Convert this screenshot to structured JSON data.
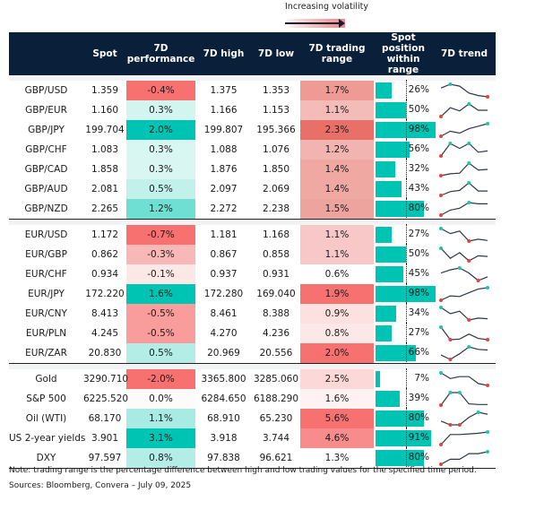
{
  "legend": {
    "label": "Increasing volatility"
  },
  "headers": {
    "name": "",
    "spot": "Spot",
    "perf": "7D performance",
    "high": "7D high",
    "low": "7D low",
    "range": "7D trading range",
    "position": "Spot position within range",
    "trend": "7D trend"
  },
  "colors": {
    "header_bg": "#0a1f3a",
    "bar": "#00c4b3",
    "trend_line": "#2d3748",
    "trend_high_dot": "#1fc4b0",
    "trend_low_dot": "#e0443c",
    "spacer": "#f1f3f5"
  },
  "groups": [
    {
      "rows": [
        {
          "name": "GBP/USD",
          "spot": "1.359",
          "perf": "-0.4%",
          "perf_bg": "#f87171",
          "high": "1.375",
          "low": "1.353",
          "range": "1.7%",
          "range_bg": "#ef9a94",
          "position": 26,
          "position_label": "26%",
          "trend": [
            0.7,
            1.0,
            0.85,
            0.3,
            0.1,
            0.0
          ]
        },
        {
          "name": "GBP/EUR",
          "spot": "1.160",
          "perf": "0.3%",
          "perf_bg": "#d2f5f0",
          "high": "1.166",
          "low": "1.153",
          "range": "1.1%",
          "range_bg": "#f4bcb8",
          "position": 50,
          "position_label": "50%",
          "trend": [
            0.0,
            0.7,
            0.45,
            1.0,
            0.5,
            0.5
          ]
        },
        {
          "name": "GBP/JPY",
          "spot": "199.704",
          "perf": "2.0%",
          "perf_bg": "#00c4b3",
          "high": "199.807",
          "low": "195.366",
          "range": "2.3%",
          "range_bg": "#e87068",
          "position": 98,
          "position_label": "98%",
          "trend": [
            0.0,
            0.4,
            0.25,
            0.6,
            0.8,
            1.0
          ]
        },
        {
          "name": "GBP/CHF",
          "spot": "1.083",
          "perf": "0.3%",
          "perf_bg": "#d8f6f2",
          "high": "1.088",
          "low": "1.076",
          "range": "1.2%",
          "range_bg": "#f2b4b0",
          "position": 56,
          "position_label": "56%",
          "trend": [
            0.0,
            1.0,
            0.6,
            1.0,
            0.3,
            0.4
          ]
        },
        {
          "name": "GBP/CAD",
          "spot": "1.858",
          "perf": "0.3%",
          "perf_bg": "#daf6f2",
          "high": "1.876",
          "low": "1.850",
          "range": "1.4%",
          "range_bg": "#efa8a2",
          "position": 32,
          "position_label": "32%",
          "trend": [
            0.0,
            0.15,
            0.2,
            1.0,
            0.45,
            0.5
          ]
        },
        {
          "name": "GBP/AUD",
          "spot": "2.081",
          "perf": "0.5%",
          "perf_bg": "#c2f1eb",
          "high": "2.097",
          "low": "2.069",
          "range": "1.4%",
          "range_bg": "#efa8a2",
          "position": 43,
          "position_label": "43%",
          "trend": [
            0.0,
            0.3,
            0.4,
            1.0,
            0.35,
            0.35
          ]
        },
        {
          "name": "GBP/NZD",
          "spot": "2.265",
          "perf": "1.2%",
          "perf_bg": "#6fdfd4",
          "high": "2.272",
          "low": "2.238",
          "range": "1.5%",
          "range_bg": "#eea49e",
          "position": 80,
          "position_label": "80%",
          "trend": [
            0.0,
            0.4,
            0.55,
            1.0,
            0.9,
            0.9
          ]
        }
      ]
    },
    {
      "rows": [
        {
          "name": "EUR/USD",
          "spot": "1.172",
          "perf": "-0.7%",
          "perf_bg": "#f87171",
          "high": "1.181",
          "low": "1.168",
          "range": "1.1%",
          "range_bg": "#f8c8c8",
          "position": 27,
          "position_label": "27%",
          "trend": [
            1.0,
            0.6,
            0.8,
            0.0,
            0.15,
            0.05
          ]
        },
        {
          "name": "EUR/GBP",
          "spot": "0.862",
          "perf": "-0.3%",
          "perf_bg": "#f9b8b8",
          "high": "0.867",
          "low": "0.858",
          "range": "1.1%",
          "range_bg": "#f8c8c8",
          "position": 50,
          "position_label": "50%",
          "trend": [
            1.0,
            0.2,
            0.65,
            0.0,
            0.4,
            0.35
          ]
        },
        {
          "name": "EUR/CHF",
          "spot": "0.934",
          "perf": "-0.1%",
          "perf_bg": "#fde8e8",
          "high": "0.937",
          "low": "0.931",
          "range": "0.6%",
          "range_bg": "#ffffff",
          "position": 45,
          "position_label": "45%",
          "trend": [
            0.6,
            0.85,
            1.0,
            0.6,
            0.0,
            0.3
          ]
        },
        {
          "name": "EUR/JPY",
          "spot": "172.220",
          "perf": "1.6%",
          "perf_bg": "#00c4b3",
          "high": "172.280",
          "low": "169.040",
          "range": "1.9%",
          "range_bg": "#f87171",
          "position": 98,
          "position_label": "98%",
          "trend": [
            0.0,
            0.35,
            0.3,
            0.6,
            0.9,
            1.0
          ]
        },
        {
          "name": "EUR/CNY",
          "spot": "8.413",
          "perf": "-0.5%",
          "perf_bg": "#f99c9c",
          "high": "8.461",
          "low": "8.388",
          "range": "0.9%",
          "range_bg": "#fde0e0",
          "position": 34,
          "position_label": "34%",
          "trend": [
            1.0,
            0.5,
            0.7,
            0.0,
            0.15,
            0.1
          ]
        },
        {
          "name": "EUR/PLN",
          "spot": "4.245",
          "perf": "-0.5%",
          "perf_bg": "#f99c9c",
          "high": "4.270",
          "low": "4.236",
          "range": "0.8%",
          "range_bg": "#fde8e8",
          "position": 27,
          "position_label": "27%",
          "trend": [
            1.0,
            0.0,
            0.05,
            0.45,
            0.1,
            0.0
          ]
        },
        {
          "name": "EUR/ZAR",
          "spot": "20.830",
          "perf": "0.5%",
          "perf_bg": "#b4ede6",
          "high": "20.969",
          "low": "20.556",
          "range": "2.0%",
          "range_bg": "#f87171",
          "position": 66,
          "position_label": "66%",
          "trend": [
            0.35,
            0.0,
            0.45,
            1.0,
            0.8,
            0.75
          ]
        }
      ]
    },
    {
      "rows": [
        {
          "name": "Gold",
          "spot": "3290.710",
          "perf": "-2.0%",
          "perf_bg": "#f87171",
          "high": "3365.800",
          "low": "3285.060",
          "range": "2.5%",
          "range_bg": "#fdd8d8",
          "position": 7,
          "position_label": "7%",
          "trend": [
            1.0,
            0.55,
            0.7,
            0.7,
            0.15,
            0.0
          ]
        },
        {
          "name": "S&P 500",
          "spot": "6225.520",
          "perf": "0.0%",
          "perf_bg": "#fdfafa",
          "high": "6284.650",
          "low": "6188.290",
          "range": "1.6%",
          "range_bg": "#fef2f2",
          "position": 39,
          "position_label": "39%",
          "trend": [
            0.0,
            1.0,
            1.0,
            0.1,
            0.05,
            0.05
          ]
        },
        {
          "name": "Oil (WTI)",
          "spot": "68.170",
          "perf": "1.1%",
          "perf_bg": "#a8ebe3",
          "high": "68.910",
          "low": "65.230",
          "range": "5.6%",
          "range_bg": "#f87171",
          "position": 80,
          "position_label": "80%",
          "trend": [
            0.3,
            0.0,
            0.0,
            0.6,
            1.0,
            0.85
          ]
        },
        {
          "name": "US 2-year yields",
          "spot": "3.901",
          "perf": "3.1%",
          "perf_bg": "#00c4b3",
          "high": "3.918",
          "low": "3.744",
          "range": "4.6%",
          "range_bg": "#f88c8c",
          "position": 91,
          "position_label": "91%",
          "trend": [
            0.0,
            0.8,
            0.8,
            0.85,
            0.9,
            1.0
          ]
        },
        {
          "name": "DXY",
          "spot": "97.597",
          "perf": "0.8%",
          "perf_bg": "#b4ede6",
          "high": "97.838",
          "low": "96.621",
          "range": "1.3%",
          "range_bg": "#ffffff",
          "position": 80,
          "position_label": "80%",
          "trend": [
            0.0,
            0.4,
            0.4,
            0.85,
            0.85,
            1.0
          ]
        }
      ]
    }
  ],
  "footer": {
    "note": "Note: trading range is the percentage difference between high and low trading values for the specified time period.",
    "sources": "Sources: Bloomberg, Convera – July 09, 2025"
  }
}
